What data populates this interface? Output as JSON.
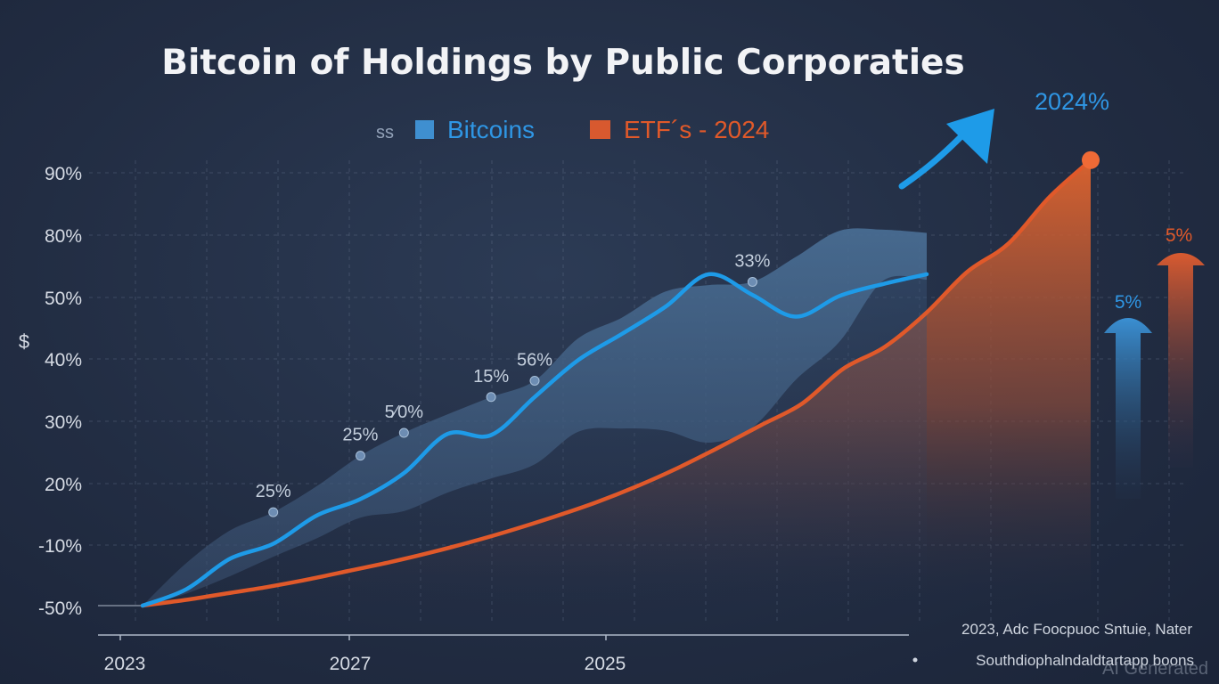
{
  "chart_data": {
    "type": "area",
    "title": "Bitcoin of Holdings by Public Corporaties",
    "legend": {
      "prefix": "ss",
      "placement": "top-center",
      "items": [
        {
          "label": "Bitcoins",
          "color": "#3f8fd0"
        },
        {
          "label": "ETF´s - 2024",
          "color": "#d8592f"
        }
      ]
    },
    "y_axis_symbol": "$",
    "y_tick_labels": [
      "90%",
      "80%",
      "50%",
      "40%",
      "30%",
      "20%",
      "-10%",
      "-50%"
    ],
    "x_tick_labels": [
      "2023",
      "2027",
      "2025"
    ],
    "grid": true,
    "series": [
      {
        "name": "Bitcoins",
        "color": "#1e9be8",
        "x": [
          0,
          1,
          2,
          3,
          4,
          5,
          6,
          7,
          8,
          9,
          10,
          11,
          12,
          13,
          14,
          15,
          16,
          17,
          18
        ],
        "values": [
          0,
          1.5,
          4.3,
          5.7,
          8.3,
          9.8,
          12.2,
          15.8,
          15.7,
          19.2,
          22.6,
          25.0,
          27.5,
          30.5,
          28.6,
          26.6,
          28.5,
          29.6,
          30.5
        ],
        "band_upper": [
          0,
          3.9,
          6.9,
          8.6,
          11.0,
          13.8,
          15.9,
          17.6,
          19.2,
          20.7,
          24.6,
          26.5,
          28.9,
          29.5,
          29.8,
          32.1,
          34.5,
          34.6,
          34.3
        ],
        "band_lower": [
          0,
          1.1,
          2.7,
          4.5,
          6.2,
          8.1,
          8.7,
          10.4,
          11.7,
          13.0,
          16.0,
          16.3,
          16.1,
          15.0,
          16.4,
          20.8,
          24.3,
          29.9,
          30.0
        ]
      },
      {
        "name": "ETF´s - 2024",
        "color": "#e0592a",
        "x": [
          0,
          1,
          2,
          3,
          4,
          5,
          6,
          7,
          8,
          9,
          10,
          11,
          12,
          13,
          14,
          15,
          16,
          17,
          18,
          19,
          20,
          21,
          22,
          23
        ],
        "values": [
          0,
          0.5,
          1.1,
          1.7,
          2.4,
          3.2,
          4.0,
          4.9,
          5.9,
          7.0,
          8.2,
          9.5,
          11.0,
          12.7,
          14.6,
          16.6,
          18.6,
          21.8,
          23.8,
          26.9,
          30.7,
          33.3,
          37.6,
          41.0
        ]
      }
    ],
    "point_labels": [
      "25%",
      "25%",
      "5⁄0%",
      "15%",
      "56%",
      "33%"
    ],
    "arrow_label": "2024%",
    "side_bars": [
      {
        "label": "5%",
        "color": "#3b8fd0"
      },
      {
        "label": "5%",
        "color": "#d8592f"
      }
    ],
    "footnote": "2023,  Adc  Foocpuoc   Sntuie,  Nater",
    "source": "Southdiophalndaldtartapp boons",
    "watermark": "AI Generated"
  }
}
